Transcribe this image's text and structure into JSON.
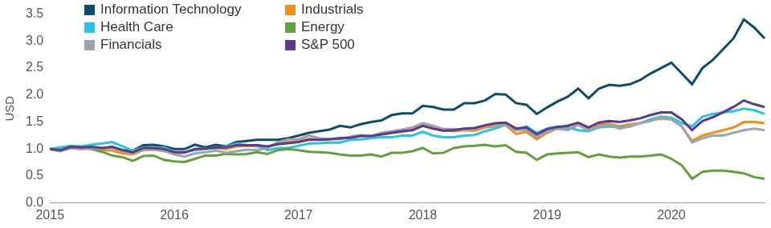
{
  "chart_data": {
    "type": "line",
    "y_label": "USD",
    "categories": [
      "2015",
      null,
      null,
      null,
      null,
      null,
      null,
      null,
      null,
      null,
      null,
      null,
      "2016",
      null,
      null,
      null,
      null,
      null,
      null,
      null,
      null,
      null,
      null,
      null,
      "2017",
      null,
      null,
      null,
      null,
      null,
      null,
      null,
      null,
      null,
      null,
      null,
      "2018",
      null,
      null,
      null,
      null,
      null,
      null,
      null,
      null,
      null,
      null,
      null,
      "2019",
      null,
      null,
      null,
      null,
      null,
      null,
      null,
      null,
      null,
      null,
      null,
      "2020",
      null,
      null,
      null,
      null,
      null,
      null,
      null,
      null,
      null
    ],
    "series": [
      {
        "name": "Information Technology",
        "color": "#0f4c6b",
        "values": [
          1.0,
          0.97,
          1.03,
          1.01,
          1.03,
          1.0,
          1.04,
          0.98,
          0.97,
          1.07,
          1.08,
          1.05,
          1.0,
          1.0,
          1.08,
          1.03,
          1.08,
          1.05,
          1.13,
          1.15,
          1.17,
          1.17,
          1.17,
          1.2,
          1.25,
          1.3,
          1.33,
          1.36,
          1.43,
          1.4,
          1.46,
          1.5,
          1.53,
          1.63,
          1.66,
          1.66,
          1.8,
          1.78,
          1.73,
          1.73,
          1.85,
          1.85,
          1.9,
          2.02,
          2.01,
          1.85,
          1.82,
          1.65,
          1.77,
          1.88,
          1.97,
          2.12,
          1.94,
          2.12,
          2.19,
          2.17,
          2.2,
          2.28,
          2.4,
          2.5,
          2.6,
          2.4,
          2.2,
          2.5,
          2.65,
          2.85,
          3.05,
          3.4,
          3.25,
          3.05
        ]
      },
      {
        "name": "Industrials",
        "color": "#f28e1c",
        "values": [
          1.0,
          0.96,
          1.02,
          1.0,
          1.01,
          0.98,
          0.97,
          0.92,
          0.9,
          0.98,
          0.99,
          0.96,
          0.92,
          0.93,
          1.0,
          1.01,
          1.02,
          1.0,
          1.05,
          1.06,
          1.05,
          1.04,
          1.1,
          1.13,
          1.15,
          1.19,
          1.18,
          1.19,
          1.2,
          1.22,
          1.24,
          1.24,
          1.27,
          1.3,
          1.32,
          1.36,
          1.45,
          1.38,
          1.35,
          1.33,
          1.35,
          1.34,
          1.4,
          1.42,
          1.44,
          1.28,
          1.32,
          1.18,
          1.3,
          1.38,
          1.37,
          1.45,
          1.35,
          1.45,
          1.47,
          1.42,
          1.46,
          1.48,
          1.54,
          1.56,
          1.55,
          1.42,
          1.15,
          1.25,
          1.3,
          1.35,
          1.4,
          1.5,
          1.5,
          1.48
        ]
      },
      {
        "name": "Health Care",
        "color": "#29c3e3",
        "values": [
          1.0,
          1.03,
          1.06,
          1.05,
          1.08,
          1.1,
          1.13,
          1.05,
          0.97,
          1.03,
          1.02,
          1.03,
          0.95,
          0.94,
          0.98,
          1.0,
          1.02,
          1.05,
          1.1,
          1.07,
          1.06,
          0.98,
          1.02,
          1.02,
          1.06,
          1.1,
          1.11,
          1.12,
          1.12,
          1.17,
          1.18,
          1.2,
          1.22,
          1.22,
          1.25,
          1.25,
          1.32,
          1.25,
          1.22,
          1.22,
          1.25,
          1.26,
          1.33,
          1.38,
          1.45,
          1.35,
          1.42,
          1.3,
          1.38,
          1.42,
          1.4,
          1.35,
          1.33,
          1.4,
          1.42,
          1.4,
          1.42,
          1.48,
          1.55,
          1.6,
          1.58,
          1.48,
          1.42,
          1.6,
          1.65,
          1.68,
          1.7,
          1.75,
          1.72,
          1.65
        ]
      },
      {
        "name": "Energy",
        "color": "#62a03c",
        "values": [
          1.0,
          0.97,
          1.02,
          1.03,
          1.0,
          0.95,
          0.88,
          0.85,
          0.78,
          0.87,
          0.88,
          0.8,
          0.77,
          0.76,
          0.82,
          0.88,
          0.88,
          0.91,
          0.9,
          0.91,
          0.94,
          0.91,
          0.98,
          1.0,
          0.98,
          0.95,
          0.94,
          0.93,
          0.9,
          0.88,
          0.88,
          0.9,
          0.86,
          0.93,
          0.93,
          0.96,
          1.02,
          0.92,
          0.93,
          1.02,
          1.05,
          1.06,
          1.08,
          1.05,
          1.07,
          0.95,
          0.93,
          0.8,
          0.9,
          0.92,
          0.93,
          0.94,
          0.85,
          0.9,
          0.86,
          0.84,
          0.86,
          0.86,
          0.88,
          0.9,
          0.82,
          0.7,
          0.45,
          0.58,
          0.6,
          0.6,
          0.58,
          0.55,
          0.48,
          0.45
        ]
      },
      {
        "name": "Financials",
        "color": "#9ea4ad",
        "values": [
          1.0,
          0.96,
          1.02,
          1.0,
          1.02,
          1.01,
          1.02,
          0.96,
          0.93,
          0.99,
          1.0,
          0.97,
          0.9,
          0.86,
          0.92,
          0.94,
          0.97,
          0.93,
          0.96,
          0.99,
          0.98,
          1.02,
          1.13,
          1.18,
          1.18,
          1.25,
          1.2,
          1.19,
          1.18,
          1.23,
          1.26,
          1.24,
          1.3,
          1.33,
          1.36,
          1.4,
          1.48,
          1.43,
          1.37,
          1.37,
          1.36,
          1.37,
          1.43,
          1.45,
          1.44,
          1.35,
          1.36,
          1.22,
          1.33,
          1.38,
          1.35,
          1.45,
          1.35,
          1.42,
          1.45,
          1.38,
          1.42,
          1.48,
          1.52,
          1.58,
          1.55,
          1.42,
          1.12,
          1.2,
          1.25,
          1.25,
          1.3,
          1.35,
          1.38,
          1.35
        ]
      },
      {
        "name": "S&P 500",
        "color": "#5a3a8a",
        "values": [
          1.0,
          0.98,
          1.04,
          1.03,
          1.04,
          1.02,
          1.04,
          0.98,
          0.94,
          1.02,
          1.02,
          1.0,
          0.94,
          0.94,
          1.0,
          1.01,
          1.03,
          1.03,
          1.07,
          1.07,
          1.07,
          1.05,
          1.09,
          1.11,
          1.13,
          1.17,
          1.17,
          1.18,
          1.2,
          1.21,
          1.24,
          1.24,
          1.27,
          1.3,
          1.33,
          1.35,
          1.43,
          1.38,
          1.34,
          1.35,
          1.38,
          1.39,
          1.44,
          1.48,
          1.49,
          1.38,
          1.4,
          1.27,
          1.37,
          1.41,
          1.43,
          1.49,
          1.4,
          1.49,
          1.52,
          1.5,
          1.53,
          1.57,
          1.63,
          1.68,
          1.68,
          1.55,
          1.35,
          1.52,
          1.59,
          1.68,
          1.78,
          1.9,
          1.83,
          1.78
        ]
      }
    ],
    "ylim": [
      0,
      3.5
    ],
    "yticks": [
      {
        "value": 0,
        "label": "0.0"
      },
      {
        "value": 0.5,
        "label": "0.5"
      },
      {
        "value": 1,
        "label": "1.0"
      },
      {
        "value": 1.5,
        "label": "1.5"
      },
      {
        "value": 2,
        "label": "2.0"
      },
      {
        "value": 2.5,
        "label": "2.5"
      },
      {
        "value": 3,
        "label": "3.0"
      },
      {
        "value": 3.5,
        "label": "3.5"
      }
    ],
    "grid": false,
    "legend": "top-left"
  }
}
